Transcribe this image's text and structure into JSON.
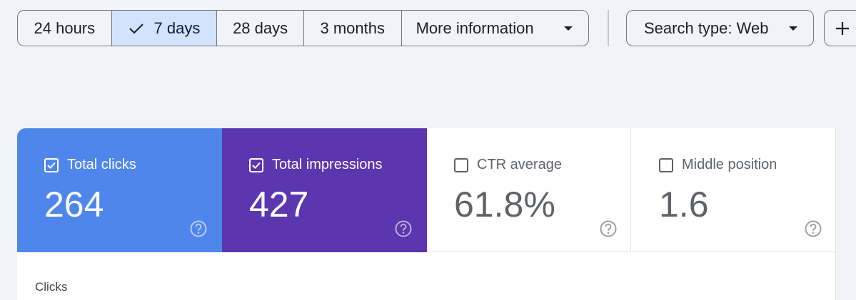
{
  "filters": {
    "periods": [
      "24 hours",
      "7 days",
      "28 days",
      "3 months",
      "More information"
    ],
    "selected": "7 days",
    "search_type": "Search type: Web"
  },
  "metrics": [
    {
      "label": "Total clicks",
      "value": "264",
      "checked": true
    },
    {
      "label": "Total impressions",
      "value": "427",
      "checked": true
    },
    {
      "label": "CTR average",
      "value": "61.8%",
      "checked": false
    },
    {
      "label": "Middle position",
      "value": "1.6",
      "checked": false
    }
  ],
  "chart": {
    "label": "Clicks"
  }
}
